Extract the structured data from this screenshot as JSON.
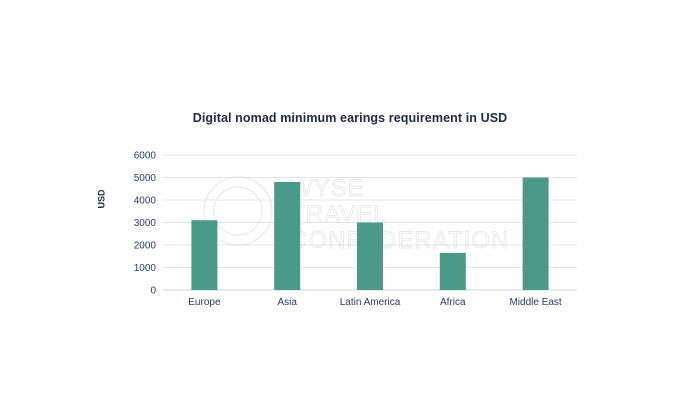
{
  "chart_data": {
    "type": "bar",
    "title": "Digital nomad minimum earings requirement in USD",
    "xlabel": "",
    "ylabel": "USD",
    "categories": [
      "Europe",
      "Asia",
      "Latin America",
      "Africa",
      "Middle East"
    ],
    "values": [
      3100,
      4800,
      3000,
      1650,
      5000
    ],
    "ylim": [
      0,
      6000
    ],
    "yticks": [
      0,
      1000,
      2000,
      3000,
      4000,
      5000,
      6000
    ],
    "grid": true,
    "legend": "none",
    "bar_color": "#4b9a87",
    "grid_color": "#d9dde2",
    "text_color": "#1f2a44"
  },
  "watermark": {
    "lines": [
      "WYSE",
      "TRAVEL",
      "CONFEDERATION"
    ],
    "color": "#e6e8ea"
  }
}
